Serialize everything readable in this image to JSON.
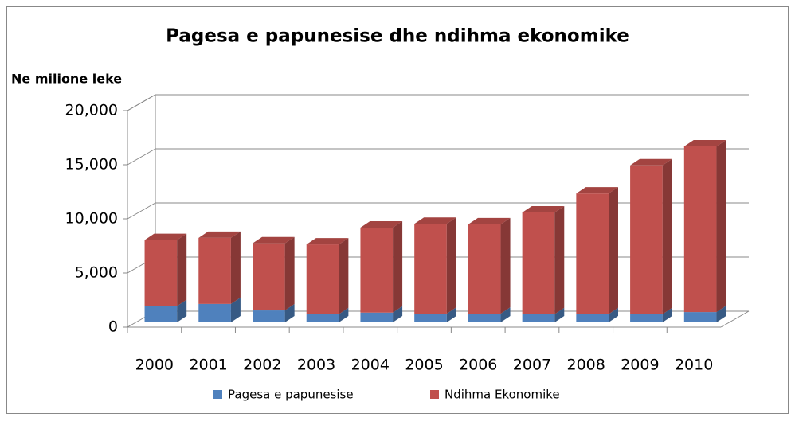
{
  "chart_data": {
    "type": "bar3d_stacked",
    "title": "Pagesa e papunesise dhe ndihma ekonomike",
    "y_axis_label": "Ne milione leke",
    "categories": [
      "2000",
      "2001",
      "2002",
      "2003",
      "2004",
      "2005",
      "2006",
      "2007",
      "2008",
      "2009",
      "2010"
    ],
    "series": [
      {
        "name": "Pagesa e papunesise",
        "color": "#4f81bd",
        "values": [
          1500,
          1700,
          1100,
          750,
          900,
          800,
          800,
          750,
          750,
          750,
          950
        ]
      },
      {
        "name": "Ndihma Ekonomike",
        "color": "#c0504d",
        "values": [
          6100,
          6100,
          6200,
          6450,
          7850,
          8300,
          8250,
          9400,
          11150,
          13750,
          15300
        ]
      }
    ],
    "ylim": [
      0,
      20000
    ],
    "yticks": [
      0,
      {
        "value": 5000,
        "label": "5,000"
      },
      {
        "value": 10000,
        "label": "10,000"
      },
      {
        "value": 15000,
        "label": "15,000"
      },
      {
        "value": 20000,
        "label": "20,000"
      }
    ],
    "grid": true,
    "legend": "bottom"
  }
}
